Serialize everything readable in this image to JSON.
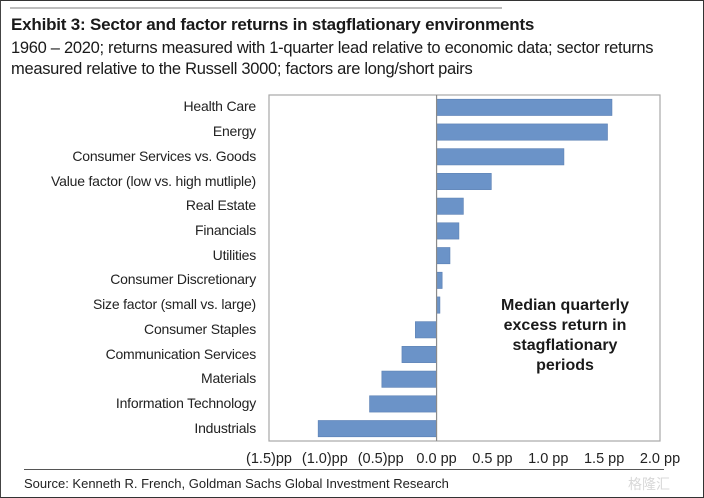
{
  "chart_data": {
    "type": "bar",
    "orientation": "horizontal",
    "title": "Exhibit 3: Sector and factor returns in stagflationary environments",
    "subtitle": "1960 – 2020; returns measured with 1-quarter lead relative to economic data; sector returns measured relative to the Russell 3000; factors are long/short pairs",
    "categories": [
      "Health Care",
      "Energy",
      "Consumer Services vs. Goods",
      "Value factor (low vs. high mutliple)",
      "Real Estate",
      "Financials",
      "Utilities",
      "Consumer Discretionary",
      "Size factor (small vs. large)",
      "Consumer Staples",
      "Communication Services",
      "Materials",
      "Information Technology",
      "Industrials"
    ],
    "values": [
      1.57,
      1.53,
      1.14,
      0.49,
      0.24,
      0.2,
      0.12,
      0.05,
      0.03,
      -0.19,
      -0.31,
      -0.49,
      -0.6,
      -1.06
    ],
    "units": "pp",
    "xlim": [
      -1.5,
      2.0
    ],
    "xticks": [
      -1.5,
      -1.0,
      -0.5,
      0.0,
      0.5,
      1.0,
      1.5,
      2.0
    ],
    "xtick_labels": [
      "(1.5)pp",
      "(1.0)pp",
      "(0.5)pp",
      "0.0 pp",
      "0.5 pp",
      "1.0 pp",
      "1.5 pp",
      "2.0 pp"
    ],
    "annotation": "Median quarterly excess return in stagflationary periods",
    "annotation_lines": [
      "Median quarterly",
      "excess return in",
      "stagflationary",
      "periods"
    ],
    "bar_color": "#6b93c8",
    "grid": false,
    "legend": "none",
    "source": "Source: Kenneth R. French, Goldman Sachs Global Investment Research"
  },
  "watermark": "格隆汇"
}
